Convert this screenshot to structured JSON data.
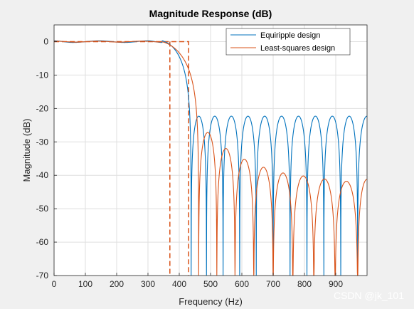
{
  "chart_data": {
    "type": "line",
    "title": "Magnitude Response (dB)",
    "xlabel": "Frequency (Hz)",
    "ylabel": "Magnitude (dB)",
    "xlim": [
      0,
      1000
    ],
    "ylim": [
      -70,
      5
    ],
    "xticks": [
      0,
      100,
      200,
      300,
      400,
      500,
      600,
      700,
      800,
      900
    ],
    "yticks": [
      0,
      -10,
      -20,
      -30,
      -40,
      -50,
      -60,
      -70
    ],
    "grid": true,
    "legend_position": "top-right",
    "passband_edge": 370,
    "stopband_edge": 430,
    "mask": {
      "passband_level": 0,
      "floor": -70
    },
    "series": [
      {
        "name": "Equiripple design",
        "color": "#0072BD",
        "passband_ripple_db": 0.5,
        "passband_ripple_peaks": [
          0,
          60,
          145,
          225,
          300,
          345
        ],
        "stopband_level": -22.3,
        "stopband_zeros": [
          438,
          487,
          540,
          593,
          646,
          700,
          754,
          808,
          862,
          916,
          970
        ],
        "stopband_peaks": [
          463,
          514,
          567,
          620,
          673,
          727,
          781,
          835,
          889,
          943,
          1000
        ]
      },
      {
        "name": "Least-squares design",
        "color": "#D95319",
        "passband_ripple_db": 0.15,
        "stopband_zeros": [
          462,
          520,
          578,
          638,
          700,
          763,
          830,
          898,
          970
        ],
        "stopband_peak_points": [
          [
            490,
            -27.2
          ],
          [
            548,
            -32
          ],
          [
            608,
            -35.2
          ],
          [
            668,
            -37.6
          ],
          [
            732,
            -39.3
          ],
          [
            797,
            -40.2
          ],
          [
            863,
            -41.1
          ],
          [
            935,
            -41.8
          ],
          [
            1000,
            -41.2
          ]
        ]
      }
    ]
  },
  "watermark": "CSDN @jk_101"
}
